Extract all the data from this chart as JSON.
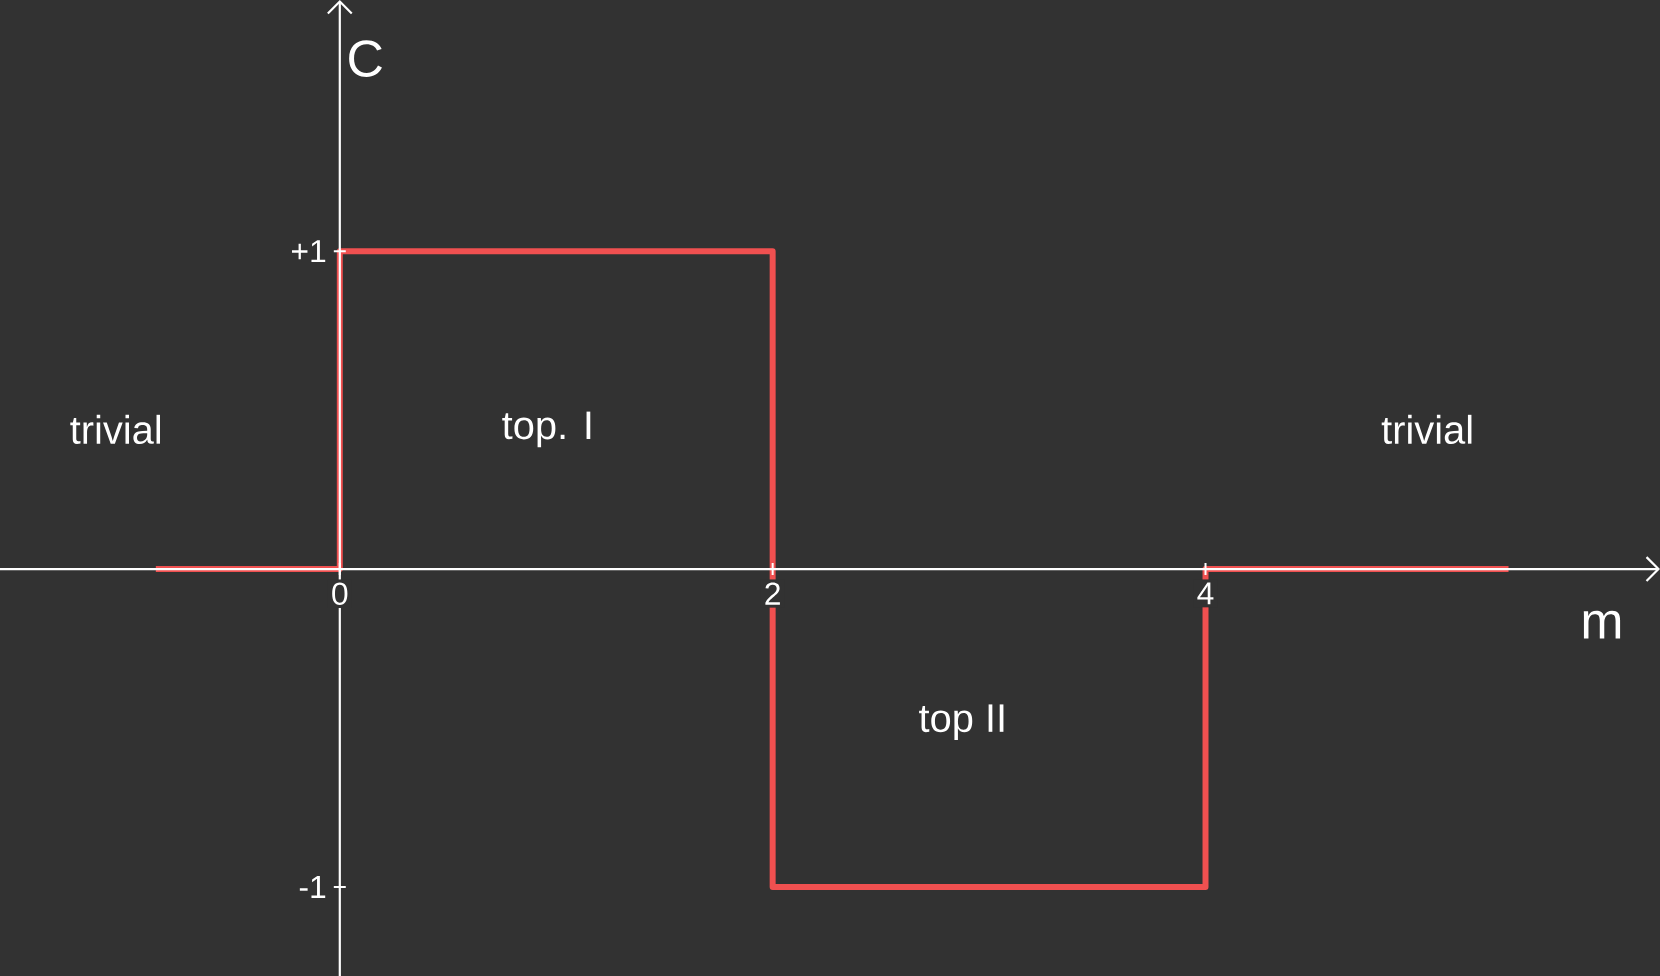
{
  "chart_data": {
    "type": "step",
    "xlabel": "m",
    "ylabel": "C",
    "x": [
      -0.85,
      0,
      2,
      4,
      5.4
    ],
    "values": [
      0,
      1,
      -1,
      0,
      0
    ],
    "color": "#f05050",
    "xlim": [
      -1.57,
      6.1
    ],
    "ylim": [
      -1.28,
      1.79
    ],
    "xticks": [
      0,
      2,
      4
    ],
    "yticks": [
      {
        "value": 1,
        "label": "+1"
      },
      {
        "value": -1,
        "label": "-1"
      }
    ],
    "annotations": [
      "trivial",
      "top. I",
      "top II",
      "trivial"
    ]
  }
}
